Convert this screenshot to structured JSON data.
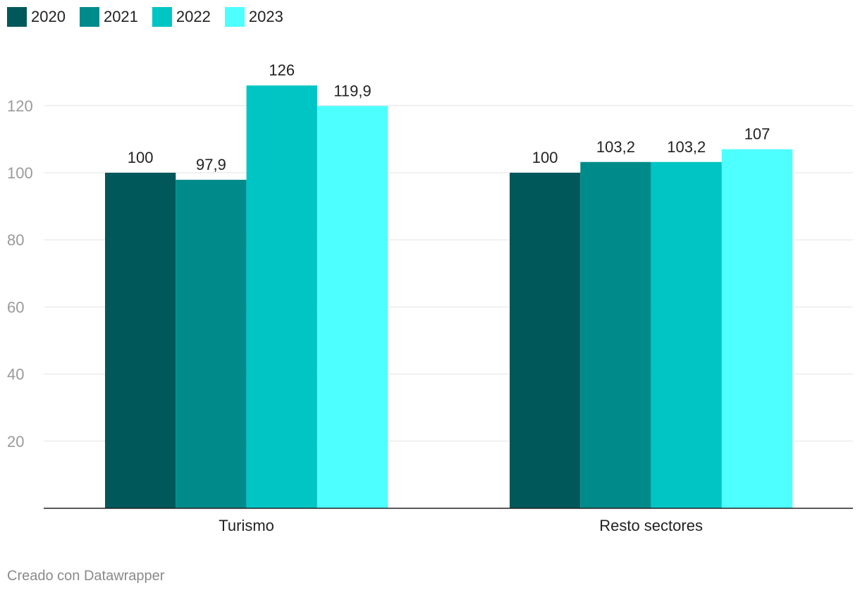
{
  "chart_data": {
    "type": "bar",
    "categories": [
      "Turismo",
      "Resto sectores"
    ],
    "series": [
      {
        "name": "2020",
        "values": [
          100,
          100
        ],
        "labels": [
          "100",
          "100"
        ],
        "color": "#00585a"
      },
      {
        "name": "2021",
        "values": [
          97.9,
          103.2
        ],
        "labels": [
          "97,9",
          "103,2"
        ],
        "color": "#008b8b"
      },
      {
        "name": "2022",
        "values": [
          126,
          103.2
        ],
        "labels": [
          "126",
          "103,2"
        ],
        "color": "#00c5c5"
      },
      {
        "name": "2023",
        "values": [
          119.9,
          107
        ],
        "labels": [
          "119,9",
          "107"
        ],
        "color": "#4dffff"
      }
    ],
    "yticks": [
      20,
      40,
      60,
      80,
      100,
      120
    ],
    "ylim": [
      0,
      130
    ],
    "grid": true,
    "legend_position": "top-left"
  },
  "footer": {
    "credit": "Creado con Datawrapper"
  }
}
